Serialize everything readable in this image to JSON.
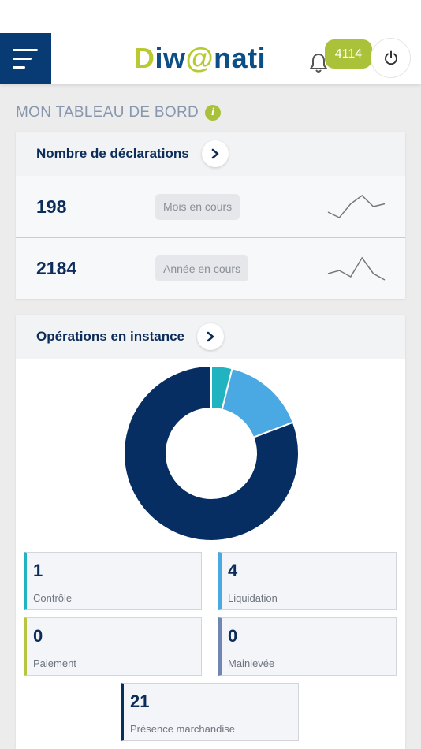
{
  "header": {
    "logo_d": "D",
    "logo_iw": "iw",
    "logo_at": "@",
    "logo_nati": "nati",
    "notification_count": "4114"
  },
  "page": {
    "title": "MON TABLEAU DE BORD",
    "info": "i"
  },
  "declarations": {
    "title": "Nombre de déclarations",
    "rows": [
      {
        "value": "198",
        "label": "Mois en cours",
        "sparkline": [
          3,
          1,
          6,
          9,
          5,
          6
        ]
      },
      {
        "value": "2184",
        "label": "Année en cours",
        "sparkline": [
          4,
          5,
          3,
          9,
          4,
          2
        ]
      }
    ]
  },
  "operations": {
    "title": "Opérations en instance",
    "colors": {
      "controle": "#22b3c1",
      "liquidation": "#4aa8e2",
      "paiement": "#b8c540",
      "mainlevee": "#6f86b2",
      "presence": "#062e63"
    },
    "items": [
      {
        "value": "1",
        "label": "Contrôle"
      },
      {
        "value": "4",
        "label": "Liquidation"
      },
      {
        "value": "0",
        "label": "Paiement"
      },
      {
        "value": "0",
        "label": "Mainlevée"
      },
      {
        "value": "21",
        "label": "Présence marchandise"
      }
    ]
  }
}
